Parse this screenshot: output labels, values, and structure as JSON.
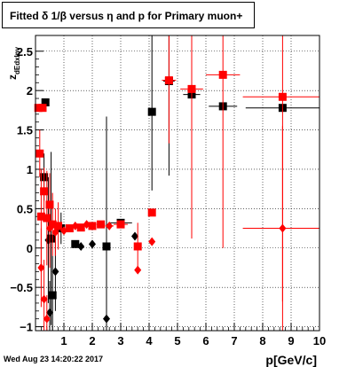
{
  "title": "Fitted δ 1/β versus η and p for Primary muon+",
  "footer_text": "Wed Aug 23 14:20:22 2017",
  "colors": {
    "series_black": "#000000",
    "series_red": "#ff0000",
    "frame": "#000000"
  },
  "chart_data": {
    "type": "scatter",
    "title": "Fitted δ 1/β versus η and p for Primary muon+",
    "xlabel": "p[GeV/c]",
    "ylabel": "z_{dEdxInv}",
    "xlim": [
      0,
      10
    ],
    "ylim": [
      -1.05,
      2.7
    ],
    "grid": true,
    "x_ticks": [
      {
        "v": 1,
        "label": "1"
      },
      {
        "v": 2,
        "label": "2"
      },
      {
        "v": 3,
        "label": "3"
      },
      {
        "v": 4,
        "label": "4"
      },
      {
        "v": 5,
        "label": "5"
      },
      {
        "v": 6,
        "label": "6"
      },
      {
        "v": 7,
        "label": "7"
      },
      {
        "v": 8,
        "label": "8"
      },
      {
        "v": 9,
        "label": "9"
      },
      {
        "v": 10,
        "label": "10"
      }
    ],
    "y_ticks": [
      {
        "v": -1,
        "label": "−1"
      },
      {
        "v": -0.5,
        "label": "−0.5"
      },
      {
        "v": 0,
        "label": "0"
      },
      {
        "v": 0.5,
        "label": "0.5"
      },
      {
        "v": 1,
        "label": "1"
      },
      {
        "v": 1.5,
        "label": "1.5"
      },
      {
        "v": 2,
        "label": "2"
      },
      {
        "v": 2.5,
        "label": "2.5"
      }
    ],
    "series": [
      {
        "color": "#000000",
        "points": [
          {
            "x": 2.5,
            "y": 0.02,
            "yerr": 1.65,
            "marker": "square"
          },
          {
            "x": 2.5,
            "y": -0.9,
            "yerr": 0,
            "marker": "diamond"
          },
          {
            "x": 4.1,
            "y": 1.73,
            "yerr": 1.0,
            "marker": "square"
          },
          {
            "x": 4.7,
            "y": 2.12,
            "yerr": 1.2,
            "xerr": 0.2,
            "marker": "square"
          },
          {
            "x": 5.5,
            "y": 1.95,
            "yerr": 1.0,
            "xerr": 0.3,
            "marker": "square"
          },
          {
            "x": 6.6,
            "y": 1.8,
            "yerr": 0,
            "xerr": 0.5,
            "marker": "square"
          },
          {
            "x": 8.7,
            "y": 1.78,
            "yerr": 0,
            "xerr": 1.3,
            "marker": "square"
          },
          {
            "x": 3.0,
            "y": 0.32,
            "yerr": 0,
            "xerr": 0.4,
            "marker": "square"
          },
          {
            "x": 1.4,
            "y": 0.05,
            "yerr": 0,
            "marker": "square"
          },
          {
            "x": 1.6,
            "y": 0.02,
            "yerr": 0,
            "marker": "diamond"
          },
          {
            "x": 2.0,
            "y": 0.05,
            "yerr": 0,
            "marker": "diamond"
          },
          {
            "x": 3.5,
            "y": 0.15,
            "yerr": 0,
            "marker": "diamond"
          },
          {
            "x": 0.35,
            "y": 1.85,
            "yerr": 0,
            "marker": "square"
          },
          {
            "x": 0.3,
            "y": 0.9,
            "yerr": 0.3,
            "marker": "square"
          },
          {
            "x": 0.55,
            "y": 0.12,
            "yerr": 1.1,
            "marker": "square"
          },
          {
            "x": 0.7,
            "y": -0.3,
            "yerr": 0.5,
            "marker": "diamond"
          },
          {
            "x": 0.5,
            "y": -0.82,
            "yerr": 0.4,
            "marker": "diamond"
          },
          {
            "x": 0.6,
            "y": -0.6,
            "yerr": 0.5,
            "marker": "square"
          },
          {
            "x": 0.45,
            "y": 0.1,
            "yerr": 0.8,
            "marker": "diamond"
          },
          {
            "x": 0.9,
            "y": 0.25,
            "yerr": 0.2,
            "marker": "square"
          }
        ]
      },
      {
        "color": "#ff0000",
        "points": [
          {
            "x": 0.1,
            "y": 1.78,
            "yerr": 0,
            "marker": "square"
          },
          {
            "x": 0.25,
            "y": 1.78,
            "yerr": 0,
            "marker": "square"
          },
          {
            "x": 0.2,
            "y": 0.4,
            "yerr": 0.6,
            "marker": "square"
          },
          {
            "x": 0.15,
            "y": 1.2,
            "yerr": 0.3,
            "marker": "square"
          },
          {
            "x": 0.3,
            "y": 0.72,
            "yerr": 0.3,
            "marker": "square"
          },
          {
            "x": 0.4,
            "y": 0.38,
            "yerr": 0.6,
            "marker": "square"
          },
          {
            "x": 0.5,
            "y": 0.25,
            "yerr": 0.5,
            "marker": "diamond"
          },
          {
            "x": 0.6,
            "y": 0.3,
            "yerr": 0.4,
            "marker": "square"
          },
          {
            "x": 0.7,
            "y": 0.2,
            "yerr": 0.3,
            "marker": "diamond"
          },
          {
            "x": 0.8,
            "y": 0.28,
            "yerr": 0.3,
            "marker": "square"
          },
          {
            "x": 0.2,
            "y": -0.25,
            "yerr": 0.5,
            "marker": "diamond"
          },
          {
            "x": 0.3,
            "y": -0.65,
            "yerr": 0.5,
            "marker": "diamond"
          },
          {
            "x": 0.4,
            "y": -0.9,
            "yerr": 0.3,
            "marker": "diamond"
          },
          {
            "x": 0.5,
            "y": 0.55,
            "yerr": 0.4,
            "marker": "square"
          },
          {
            "x": 1.0,
            "y": 0.22,
            "yerr": 0,
            "xerr": 0.1,
            "marker": "diamond"
          },
          {
            "x": 1.2,
            "y": 0.25,
            "yerr": 0,
            "xerr": 0.1,
            "marker": "square"
          },
          {
            "x": 1.4,
            "y": 0.28,
            "yerr": 0,
            "xerr": 0.1,
            "marker": "diamond"
          },
          {
            "x": 1.6,
            "y": 0.26,
            "yerr": 0,
            "xerr": 0.1,
            "marker": "square"
          },
          {
            "x": 1.8,
            "y": 0.3,
            "yerr": 0,
            "xerr": 0.1,
            "marker": "diamond"
          },
          {
            "x": 2.0,
            "y": 0.28,
            "yerr": 0,
            "xerr": 0.1,
            "marker": "square"
          },
          {
            "x": 2.3,
            "y": 0.3,
            "yerr": 0,
            "xerr": 0.15,
            "marker": "square"
          },
          {
            "x": 2.6,
            "y": 0.28,
            "yerr": 0,
            "xerr": 0.15,
            "marker": "diamond"
          },
          {
            "x": 3.0,
            "y": 0.3,
            "yerr": 0,
            "xerr": 0.25,
            "marker": "square"
          },
          {
            "x": 3.6,
            "y": 0.02,
            "yerr": 0.3,
            "marker": "square"
          },
          {
            "x": 3.6,
            "y": -0.28,
            "yerr": 0,
            "marker": "diamond"
          },
          {
            "x": 4.1,
            "y": 0.45,
            "yerr": 0,
            "marker": "square"
          },
          {
            "x": 4.1,
            "y": 0.08,
            "yerr": 0,
            "marker": "diamond"
          },
          {
            "x": 4.7,
            "y": 2.13,
            "yerr": 0.8,
            "xerr": 0.25,
            "marker": "square"
          },
          {
            "x": 5.5,
            "y": 2.02,
            "yerr": 1.9,
            "xerr": 0.4,
            "marker": "square"
          },
          {
            "x": 6.6,
            "y": 2.2,
            "yerr": 2.2,
            "xerr": 0.6,
            "marker": "square"
          },
          {
            "x": 8.7,
            "y": 1.92,
            "yerr": 2.6,
            "xerr": 1.4,
            "marker": "square"
          },
          {
            "x": 8.7,
            "y": 0.25,
            "yerr": 1.3,
            "xerr": 1.4,
            "marker": "diamond"
          }
        ]
      }
    ]
  }
}
